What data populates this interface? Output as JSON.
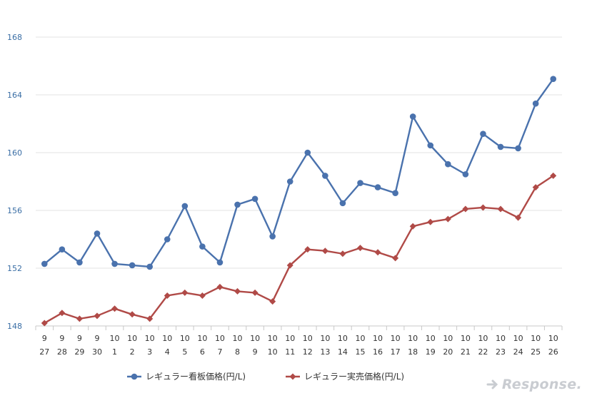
{
  "chart_data": {
    "type": "line",
    "categories": [
      [
        "9",
        "27"
      ],
      [
        "9",
        "28"
      ],
      [
        "9",
        "29"
      ],
      [
        "9",
        "30"
      ],
      [
        "10",
        "1"
      ],
      [
        "10",
        "2"
      ],
      [
        "10",
        "3"
      ],
      [
        "10",
        "4"
      ],
      [
        "10",
        "5"
      ],
      [
        "10",
        "6"
      ],
      [
        "10",
        "7"
      ],
      [
        "10",
        "8"
      ],
      [
        "10",
        "9"
      ],
      [
        "10",
        "10"
      ],
      [
        "10",
        "11"
      ],
      [
        "10",
        "12"
      ],
      [
        "10",
        "13"
      ],
      [
        "10",
        "14"
      ],
      [
        "10",
        "15"
      ],
      [
        "10",
        "16"
      ],
      [
        "10",
        "17"
      ],
      [
        "10",
        "18"
      ],
      [
        "10",
        "19"
      ],
      [
        "10",
        "20"
      ],
      [
        "10",
        "21"
      ],
      [
        "10",
        "22"
      ],
      [
        "10",
        "23"
      ],
      [
        "10",
        "24"
      ],
      [
        "10",
        "25"
      ],
      [
        "10",
        "26"
      ]
    ],
    "series": [
      {
        "name": "レギュラー看板価格(円/L)",
        "color": "#4a72ad",
        "marker": "circle",
        "values": [
          152.3,
          153.3,
          152.4,
          154.4,
          152.3,
          152.2,
          152.1,
          154.0,
          156.3,
          153.5,
          152.4,
          156.4,
          156.8,
          154.2,
          158.0,
          160.0,
          158.4,
          156.5,
          157.9,
          157.6,
          157.2,
          162.5,
          160.5,
          159.2,
          158.5,
          161.3,
          160.4,
          160.3,
          163.4,
          165.1
        ]
      },
      {
        "name": "レギュラー実売価格(円/L)",
        "color": "#b04a47",
        "marker": "diamond",
        "values": [
          148.2,
          148.9,
          148.5,
          148.7,
          149.2,
          148.8,
          148.5,
          150.1,
          150.3,
          150.1,
          150.7,
          150.4,
          150.3,
          149.7,
          152.2,
          153.3,
          153.2,
          153.0,
          153.4,
          153.1,
          152.7,
          154.9,
          155.2,
          155.4,
          156.1,
          156.2,
          156.1,
          155.5,
          157.6,
          158.4
        ]
      }
    ],
    "yticks": [
      "148",
      "152",
      "156",
      "160",
      "164",
      "168"
    ],
    "ylim": [
      148,
      168
    ],
    "grid": true,
    "legend": "bottom",
    "title": "",
    "xlabel": "",
    "ylabel": ""
  },
  "watermark": {
    "text": "Response."
  }
}
